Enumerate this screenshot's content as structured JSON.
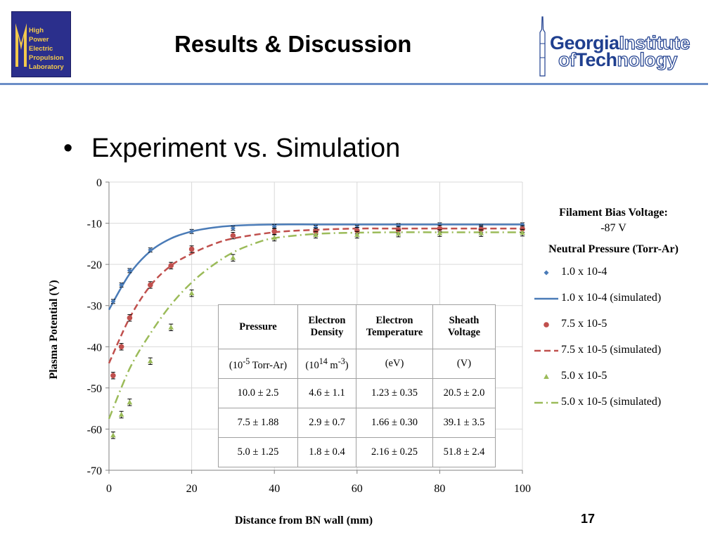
{
  "header": {
    "lab_logo_lines": [
      "High",
      "Power",
      "Electric",
      "Propulsion",
      "Laboratory"
    ],
    "title": "Results & Discussion",
    "institution_logo": {
      "line1_bold": "Georgia",
      "line1_light": "Institute",
      "line2_light_a": "of",
      "line2_bold": "Tech",
      "line2_light_b": "nology"
    }
  },
  "bullet": "Experiment vs. Simulation",
  "page_number": "17",
  "colors": {
    "series_1": "#4a7bb7",
    "series_2": "#c0504d",
    "series_3": "#9bbb59",
    "rule": "#6b8ec7",
    "logo_blue": "#2b2f8c",
    "logo_gold": "#f2c94c"
  },
  "legend": {
    "filament_heading": "Filament Bias Voltage:",
    "filament_value": "-87 V",
    "pressure_heading": "Neutral Pressure (Torr-Ar)",
    "entries": [
      {
        "label": "1.0 x 10-4",
        "kind": "marker-diamond",
        "color": "#4a7bb7"
      },
      {
        "label": "1.0 x 10-4 (simulated)",
        "kind": "solid-line",
        "color": "#4a7bb7"
      },
      {
        "label": "7.5 x 10-5",
        "kind": "marker-circle",
        "color": "#c0504d"
      },
      {
        "label": "7.5 x 10-5 (simulated)",
        "kind": "dashed-line",
        "color": "#c0504d"
      },
      {
        "label": "5.0 x 10-5",
        "kind": "marker-triangle",
        "color": "#9bbb59"
      },
      {
        "label": "5.0 x 10-5 (simulated)",
        "kind": "dash-dot-line",
        "color": "#9bbb59"
      }
    ]
  },
  "table": {
    "headers": [
      "Pressure",
      "Electron Density",
      "Electron Temperature",
      "Sheath Voltage"
    ],
    "units": [
      "(10-5 Torr-Ar)",
      "(1014 m-3)",
      "(eV)",
      "(V)"
    ],
    "rows": [
      [
        "10.0 ± 2.5",
        "4.6 ± 1.1",
        "1.23 ± 0.35",
        "20.5 ± 2.0"
      ],
      [
        "7.5 ± 1.88",
        "2.9 ± 0.7",
        "1.66 ± 0.30",
        "39.1 ± 3.5"
      ],
      [
        "5.0 ± 1.25",
        "1.8 ± 0.4",
        "2.16 ± 0.25",
        "51.8 ± 2.4"
      ]
    ]
  },
  "chart_data": {
    "type": "scatter",
    "xlabel": "Distance from BN wall (mm)",
    "ylabel": "Plasma Potential (V)",
    "xlim": [
      0,
      100
    ],
    "ylim": [
      -70,
      0
    ],
    "x_ticks": [
      0,
      20,
      40,
      60,
      80,
      100
    ],
    "y_ticks": [
      0,
      -10,
      -20,
      -30,
      -40,
      -50,
      -60,
      -70
    ],
    "grid": true,
    "legend_position": "right",
    "series": [
      {
        "name": "1.0 x 10-4",
        "kind": "measured",
        "marker": "diamond",
        "color": "#4a7bb7",
        "x": [
          1,
          3,
          5,
          10,
          20,
          30,
          40,
          50,
          60,
          70,
          80,
          90,
          100
        ],
        "y": [
          -29,
          -25,
          -21.5,
          -16.5,
          -12,
          -11.2,
          -10.8,
          -11,
          -11,
          -10.6,
          -10.4,
          -10.9,
          -10.4
        ],
        "yerr": 0.5
      },
      {
        "name": "1.0 x 10-4 (simulated)",
        "kind": "simulated",
        "line": "solid",
        "color": "#4a7bb7",
        "x": [
          0,
          5,
          10,
          15,
          20,
          25,
          30,
          40,
          50,
          60,
          70,
          80,
          90,
          100
        ],
        "y": [
          -31,
          -22.3,
          -16.8,
          -13.7,
          -12,
          -11.1,
          -10.6,
          -10.3,
          -10.3,
          -10.3,
          -10.3,
          -10.3,
          -10.3,
          -10.3
        ]
      },
      {
        "name": "7.5 x 10-5",
        "kind": "measured",
        "marker": "circle",
        "color": "#c0504d",
        "x": [
          1,
          3,
          5,
          10,
          15,
          20,
          30,
          40,
          50,
          60,
          70,
          80,
          90,
          100
        ],
        "y": [
          -47,
          -40,
          -33,
          -25,
          -20.3,
          -16.3,
          -13,
          -12,
          -12,
          -11.8,
          -11.6,
          -11.3,
          -11.5,
          -11.4
        ],
        "yerr": 0.8
      },
      {
        "name": "7.5 x 10-5 (simulated)",
        "kind": "simulated",
        "line": "dashed",
        "color": "#c0504d",
        "x": [
          0,
          5,
          10,
          15,
          20,
          25,
          30,
          40,
          50,
          60,
          70,
          80,
          90,
          100
        ],
        "y": [
          -44,
          -33,
          -25.2,
          -20.3,
          -17.4,
          -15.2,
          -13.7,
          -12.2,
          -11.6,
          -11.3,
          -11.3,
          -11.3,
          -11.3,
          -11.3
        ]
      },
      {
        "name": "5.0 x 10-5",
        "kind": "measured",
        "marker": "triangle",
        "color": "#9bbb59",
        "x": [
          1,
          3,
          5,
          10,
          15,
          20,
          30,
          40,
          50,
          60,
          70,
          80,
          90,
          100
        ],
        "y": [
          -61.5,
          -56.5,
          -53.5,
          -43.5,
          -35.3,
          -27,
          -18.4,
          -13.5,
          -12.8,
          -12.8,
          -12.5,
          -12.4,
          -12.4,
          -12.3
        ],
        "yerr": 0.8
      },
      {
        "name": "5.0 x 10-5 (simulated)",
        "kind": "simulated",
        "line": "dash-dot",
        "color": "#9bbb59",
        "x": [
          0,
          5,
          10,
          15,
          20,
          25,
          30,
          35,
          40,
          50,
          60,
          70,
          80,
          90,
          100
        ],
        "y": [
          -57.5,
          -45.3,
          -36.8,
          -29.8,
          -24.4,
          -20.3,
          -17.1,
          -15,
          -13.6,
          -12.6,
          -12.3,
          -12.2,
          -12.2,
          -12.2,
          -12.2
        ]
      }
    ]
  }
}
